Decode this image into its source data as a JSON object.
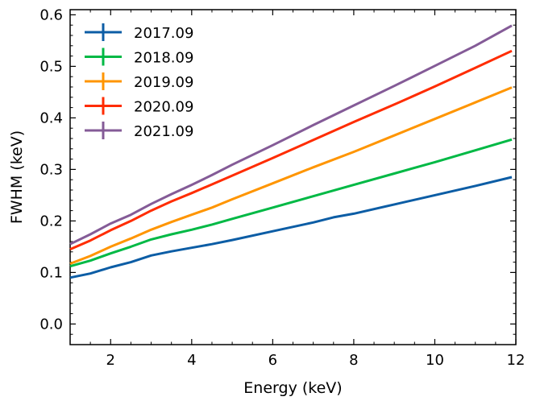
{
  "chart_data": {
    "type": "line",
    "title": "",
    "xlabel": "Energy (keV)",
    "ylabel": "FWHM (keV)",
    "xlim": [
      1,
      12
    ],
    "ylim": [
      -0.04,
      0.61
    ],
    "x_ticks": [
      2,
      4,
      6,
      8,
      10,
      12
    ],
    "y_ticks": [
      0.0,
      0.1,
      0.2,
      0.3,
      0.4,
      0.5,
      0.6
    ],
    "y_tick_labels": [
      "0.0",
      "0.1",
      "0.2",
      "0.3",
      "0.4",
      "0.5",
      "0.6"
    ],
    "grid": false,
    "legend_position": "top-left",
    "series": [
      {
        "name": "2017.09",
        "color": "#0c5da5",
        "points": [
          [
            1.0,
            0.09
          ],
          [
            1.5,
            0.098
          ],
          [
            2.0,
            0.11
          ],
          [
            2.5,
            0.12
          ],
          [
            3.0,
            0.133
          ],
          [
            3.5,
            0.141
          ],
          [
            4.0,
            0.148
          ],
          [
            4.5,
            0.155
          ],
          [
            5.0,
            0.163
          ],
          [
            6.0,
            0.18
          ],
          [
            7.0,
            0.197
          ],
          [
            7.5,
            0.207
          ],
          [
            8.0,
            0.214
          ],
          [
            9.0,
            0.232
          ],
          [
            10.0,
            0.25
          ],
          [
            11.0,
            0.268
          ],
          [
            11.9,
            0.285
          ]
        ]
      },
      {
        "name": "2018.09",
        "color": "#00b945",
        "points": [
          [
            1.0,
            0.112
          ],
          [
            1.5,
            0.123
          ],
          [
            2.0,
            0.137
          ],
          [
            2.5,
            0.15
          ],
          [
            3.0,
            0.164
          ],
          [
            3.5,
            0.174
          ],
          [
            4.0,
            0.183
          ],
          [
            4.5,
            0.193
          ],
          [
            5.0,
            0.204
          ],
          [
            6.0,
            0.226
          ],
          [
            7.0,
            0.248
          ],
          [
            8.0,
            0.27
          ],
          [
            9.0,
            0.292
          ],
          [
            10.0,
            0.314
          ],
          [
            11.0,
            0.337
          ],
          [
            11.9,
            0.358
          ]
        ]
      },
      {
        "name": "2019.09",
        "color": "#ff9500",
        "points": [
          [
            1.0,
            0.117
          ],
          [
            1.5,
            0.132
          ],
          [
            2.0,
            0.15
          ],
          [
            2.5,
            0.166
          ],
          [
            3.0,
            0.183
          ],
          [
            3.5,
            0.198
          ],
          [
            4.0,
            0.212
          ],
          [
            4.5,
            0.226
          ],
          [
            5.0,
            0.242
          ],
          [
            6.0,
            0.273
          ],
          [
            7.0,
            0.304
          ],
          [
            8.0,
            0.334
          ],
          [
            9.0,
            0.366
          ],
          [
            10.0,
            0.398
          ],
          [
            11.0,
            0.43
          ],
          [
            11.9,
            0.459
          ]
        ]
      },
      {
        "name": "2020.09",
        "color": "#ff2c00",
        "points": [
          [
            1.0,
            0.145
          ],
          [
            1.5,
            0.162
          ],
          [
            2.0,
            0.182
          ],
          [
            2.5,
            0.2
          ],
          [
            3.0,
            0.22
          ],
          [
            3.5,
            0.238
          ],
          [
            4.0,
            0.254
          ],
          [
            4.5,
            0.271
          ],
          [
            5.0,
            0.288
          ],
          [
            6.0,
            0.322
          ],
          [
            7.0,
            0.357
          ],
          [
            8.0,
            0.392
          ],
          [
            9.0,
            0.426
          ],
          [
            10.0,
            0.461
          ],
          [
            11.0,
            0.497
          ],
          [
            11.9,
            0.53
          ]
        ]
      },
      {
        "name": "2021.09",
        "color": "#845b97",
        "points": [
          [
            1.0,
            0.155
          ],
          [
            1.5,
            0.174
          ],
          [
            2.0,
            0.195
          ],
          [
            2.5,
            0.212
          ],
          [
            3.0,
            0.233
          ],
          [
            3.5,
            0.252
          ],
          [
            4.0,
            0.27
          ],
          [
            4.5,
            0.289
          ],
          [
            5.0,
            0.309
          ],
          [
            6.0,
            0.347
          ],
          [
            7.0,
            0.386
          ],
          [
            8.0,
            0.424
          ],
          [
            9.0,
            0.462
          ],
          [
            10.0,
            0.501
          ],
          [
            11.0,
            0.54
          ],
          [
            11.9,
            0.579
          ]
        ]
      }
    ]
  }
}
